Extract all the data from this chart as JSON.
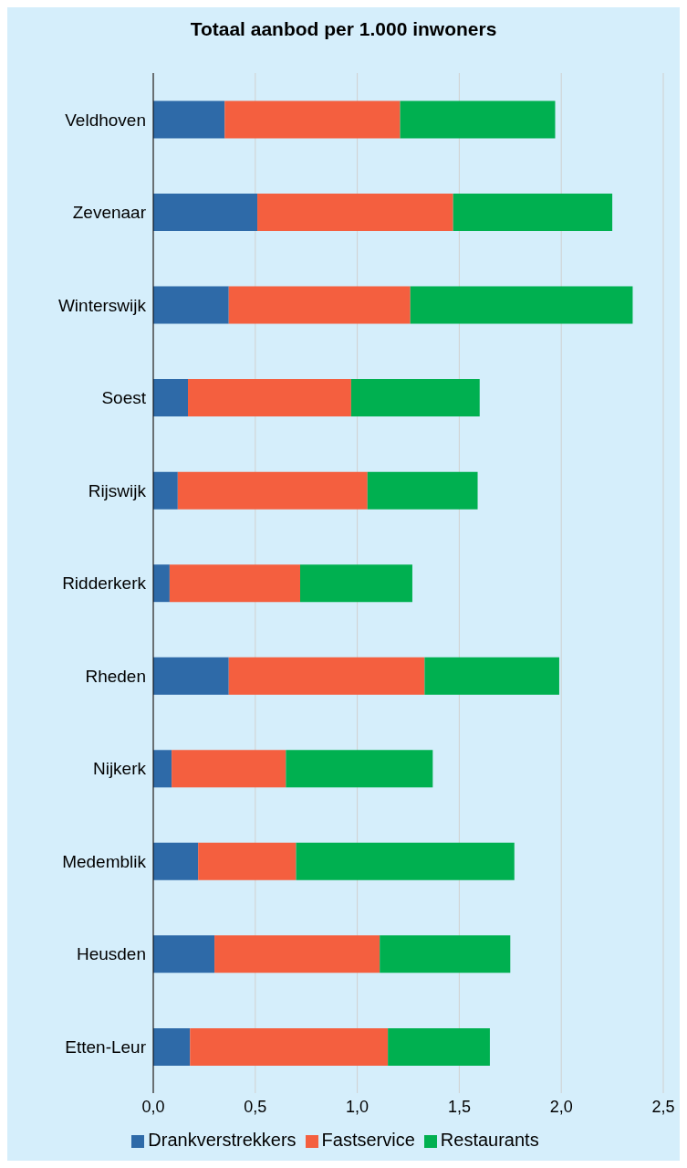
{
  "chart_data": {
    "type": "bar",
    "title": "Totaal aanbod per 1.000 inwoners",
    "orientation": "horizontal",
    "stacked": true,
    "categories": [
      "Veldhoven",
      "Zevenaar",
      "Winterswijk",
      "Soest",
      "Rijswijk",
      "Ridderkerk",
      "Rheden",
      "Nijkerk",
      "Medemblik",
      "Heusden",
      "Etten-Leur"
    ],
    "series": [
      {
        "name": "Drankverstrekkers",
        "color": "#2e6aa8",
        "values": [
          0.35,
          0.51,
          0.37,
          0.17,
          0.12,
          0.08,
          0.37,
          0.09,
          0.22,
          0.3,
          0.18
        ]
      },
      {
        "name": "Fastservice",
        "color": "#f45f3f",
        "values": [
          0.86,
          0.96,
          0.89,
          0.8,
          0.93,
          0.64,
          0.96,
          0.56,
          0.48,
          0.81,
          0.97
        ]
      },
      {
        "name": "Restaurants",
        "color": "#00b050",
        "values": [
          0.76,
          0.78,
          1.09,
          0.63,
          0.54,
          0.55,
          0.66,
          0.72,
          1.07,
          0.64,
          0.5
        ]
      }
    ],
    "xlim": [
      0,
      2.5
    ],
    "xticks": [
      {
        "value": 0,
        "label": "0,0"
      },
      {
        "value": 0.5,
        "label": "0,5"
      },
      {
        "value": 1,
        "label": "1,0"
      },
      {
        "value": 1.5,
        "label": "1,5"
      },
      {
        "value": 2,
        "label": "2,0"
      },
      {
        "value": 2.5,
        "label": "2,5"
      }
    ],
    "grid": "x",
    "legend": "bottom"
  }
}
